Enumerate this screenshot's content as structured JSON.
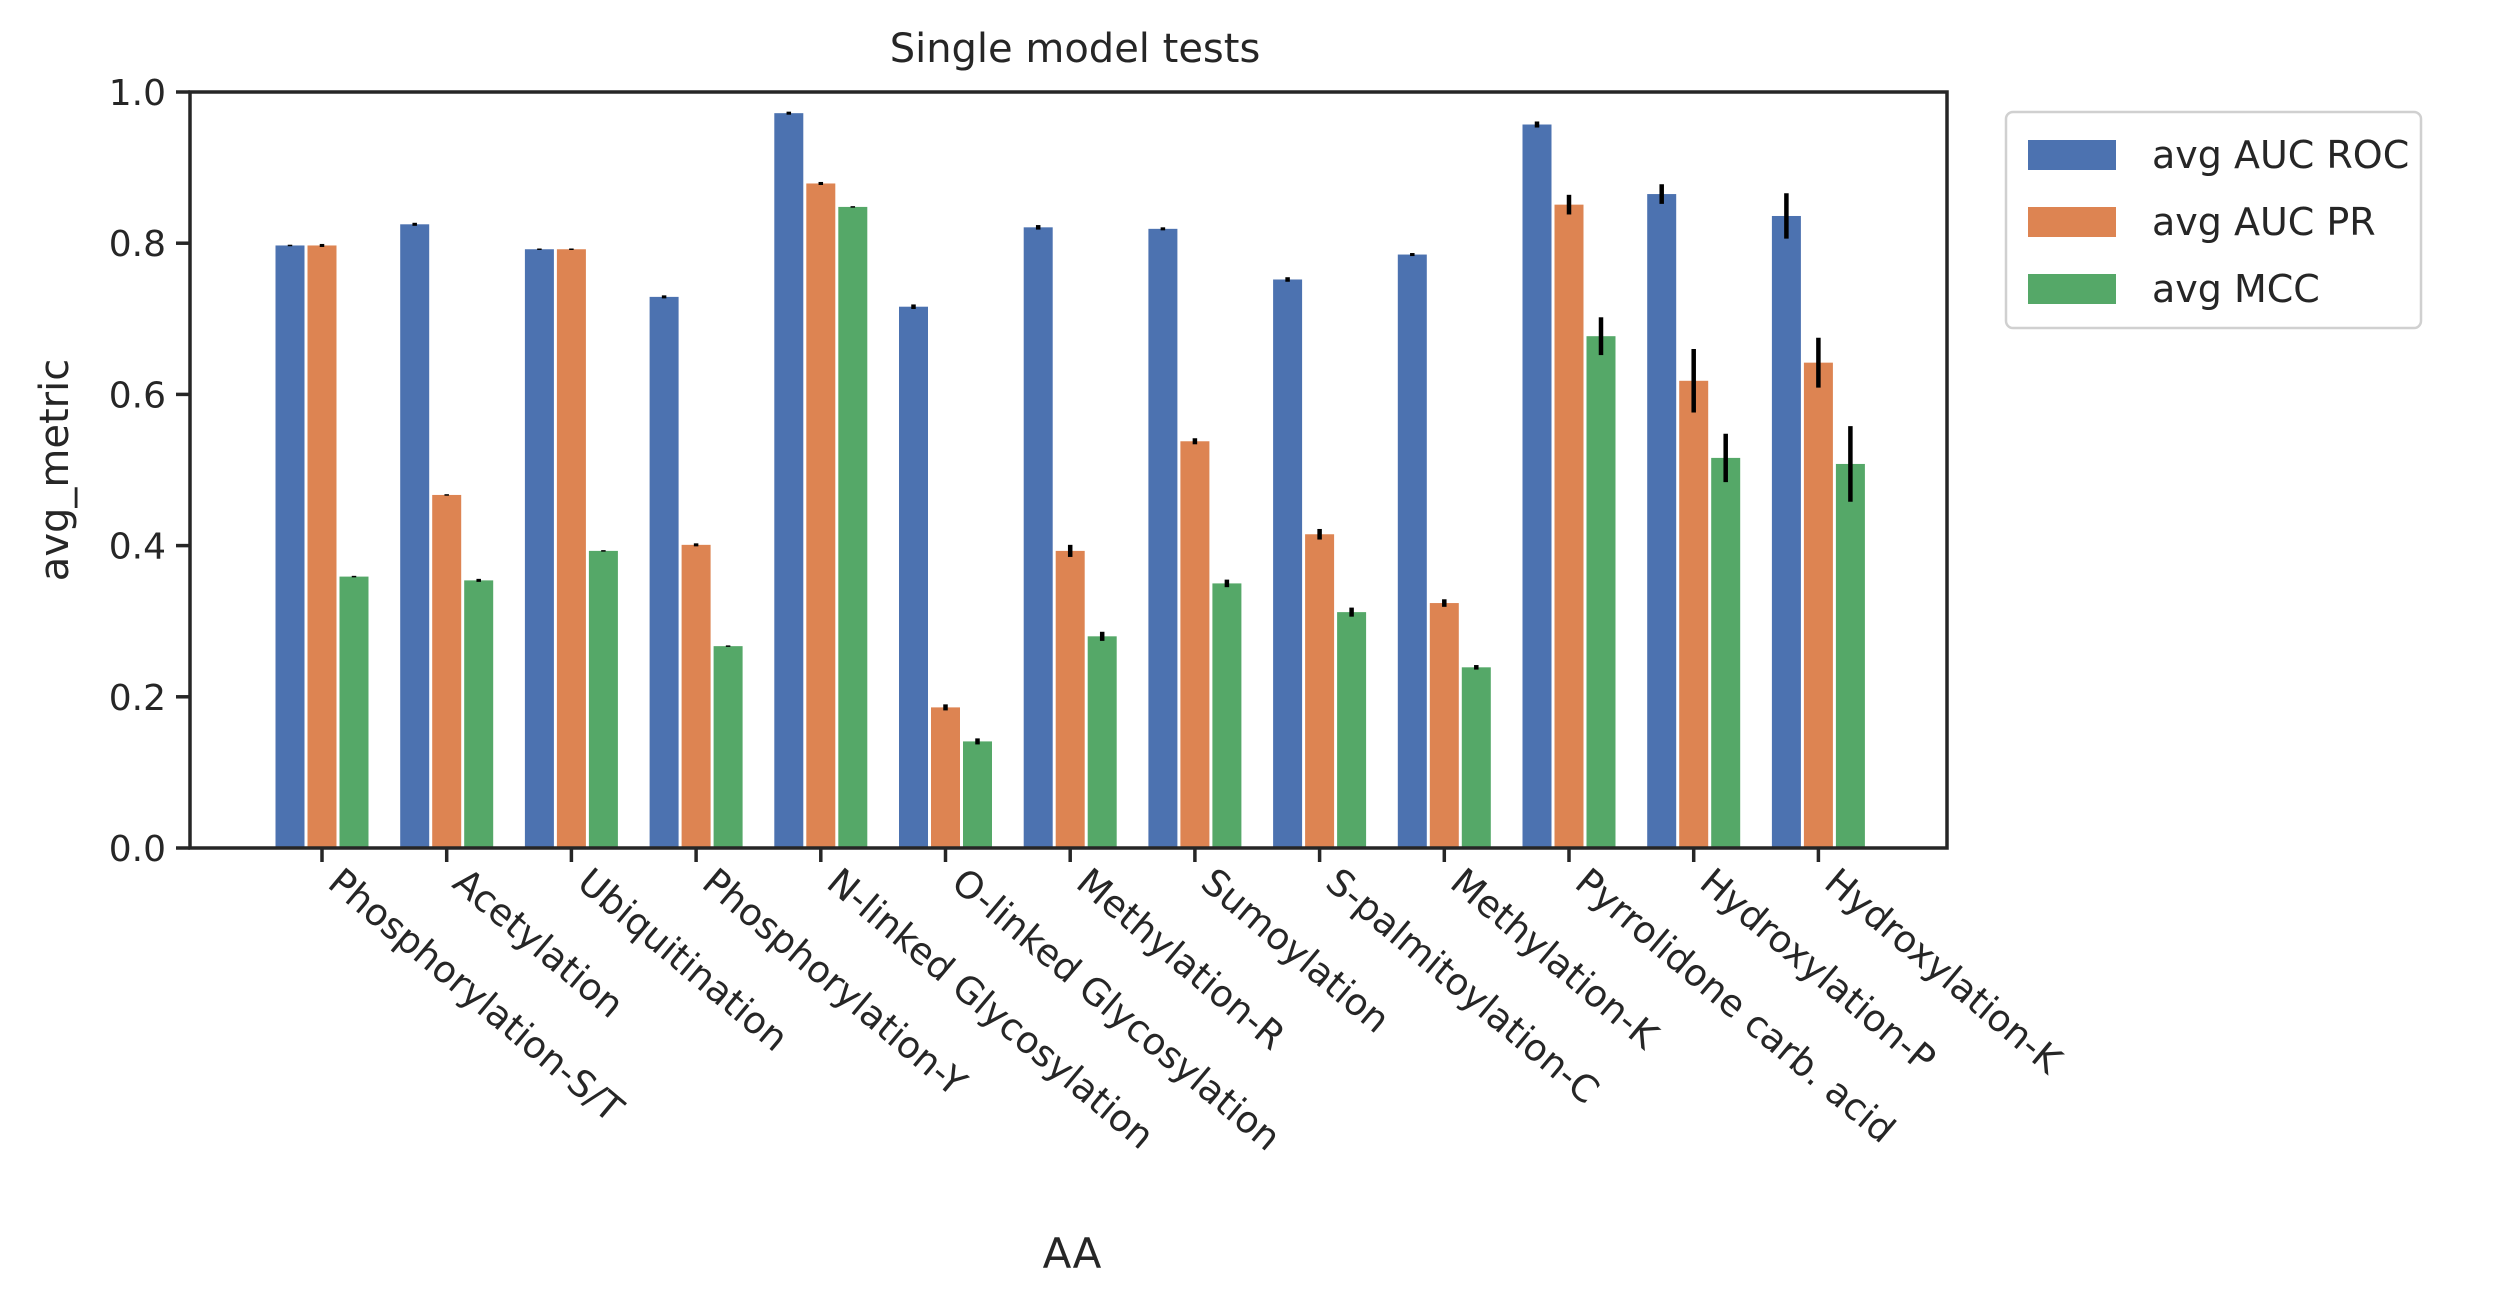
{
  "chart_data": {
    "type": "bar",
    "title": "Single model tests",
    "xlabel": "AA",
    "ylabel": "avg_metric",
    "ylim": [
      0,
      1.0
    ],
    "yticks": [
      "0.0",
      "0.2",
      "0.4",
      "0.6",
      "0.8",
      "1.0"
    ],
    "grid": false,
    "legend_position": "outside-right",
    "categories": [
      "Phosphorylation-S/T",
      "Acetylation",
      "Ubiquitination",
      "Phosphorylation-Y",
      "N-linked Glycosylation",
      "O-linked Glycosylation",
      "Methylation-R",
      "Sumoylation",
      "S-palmitoylation-C",
      "Methylation-K",
      "Pyrrolidone carb. acid",
      "Hydroxylation-P",
      "Hydroxylation-K"
    ],
    "series": [
      {
        "name": "avg AUC ROC",
        "color": "#4c72b0",
        "values": [
          0.797,
          0.825,
          0.792,
          0.729,
          0.972,
          0.716,
          0.821,
          0.819,
          0.752,
          0.785,
          0.957,
          0.865,
          0.836
        ],
        "errors": [
          0.001,
          0.002,
          0.001,
          0.002,
          0.002,
          0.003,
          0.003,
          0.002,
          0.003,
          0.002,
          0.004,
          0.013,
          0.03
        ]
      },
      {
        "name": "avg AUC PR",
        "color": "#dd8452",
        "values": [
          0.797,
          0.467,
          0.792,
          0.401,
          0.879,
          0.186,
          0.393,
          0.538,
          0.415,
          0.324,
          0.851,
          0.618,
          0.642
        ],
        "errors": [
          0.002,
          0.001,
          0.001,
          0.002,
          0.002,
          0.004,
          0.008,
          0.004,
          0.007,
          0.005,
          0.013,
          0.042,
          0.033
        ]
      },
      {
        "name": "avg MCC",
        "color": "#55a868",
        "values": [
          0.359,
          0.354,
          0.393,
          0.267,
          0.848,
          0.141,
          0.28,
          0.35,
          0.312,
          0.239,
          0.677,
          0.516,
          0.508
        ],
        "errors": [
          0.001,
          0.002,
          0.001,
          0.001,
          0.001,
          0.004,
          0.006,
          0.005,
          0.006,
          0.003,
          0.025,
          0.032,
          0.05
        ]
      }
    ]
  }
}
